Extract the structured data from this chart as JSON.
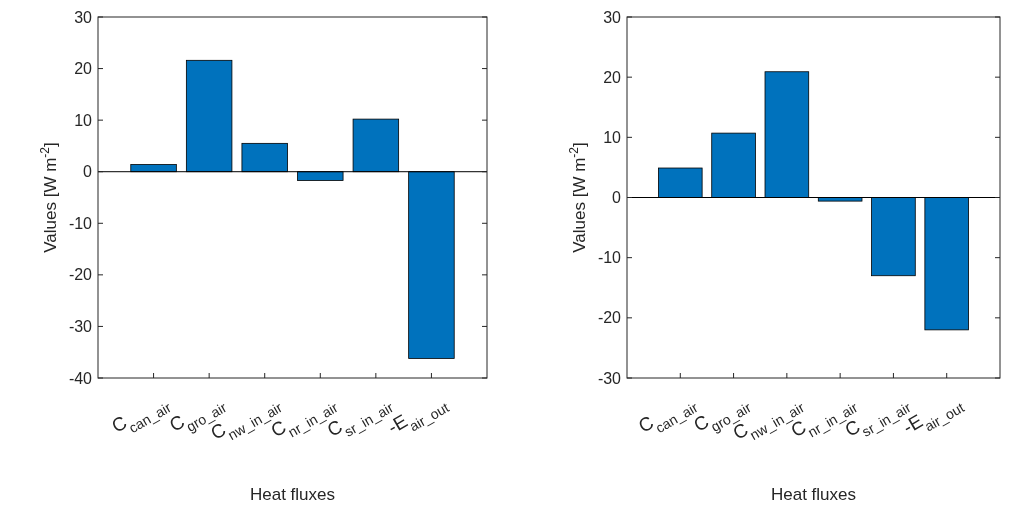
{
  "chart_data": [
    {
      "type": "bar",
      "xlabel": "Heat fluxes",
      "ylabel": "Values [W m$^{-2}$]",
      "categories": [
        "C$_{can_air}$",
        "C$_{gro_air}$",
        "C$_{nw_in_air}$",
        "C$_{nr_in_air}$",
        "C$_{sr_in_air}$",
        "-E$_{air_out}$"
      ],
      "values": [
        1.4,
        21.6,
        5.5,
        -1.7,
        10.2,
        -36.2
      ],
      "color": "#0072bd",
      "ylim": [
        -40,
        30
      ],
      "yticks": [
        -40,
        -30,
        -20,
        -10,
        0,
        10,
        20,
        30
      ],
      "ref_lines": [
        {
          "axis": "y",
          "value": 0,
          "color": "#000000"
        }
      ],
      "grid": false
    },
    {
      "type": "bar",
      "xlabel": "Heat fluxes",
      "ylabel": "Values [W m$^{-2}$]",
      "categories": [
        "C$_{can_air}$",
        "C$_{gro_air}$",
        "C$_{nw_in_air}$",
        "C$_{nr_in_air}$",
        "C$_{sr_in_air}$",
        "-E$_{air_out}$"
      ],
      "values": [
        4.9,
        10.7,
        20.9,
        -0.6,
        -13.0,
        -22.0
      ],
      "color": "#0072bd",
      "ylim": [
        -30,
        30
      ],
      "yticks": [
        -30,
        -20,
        -10,
        0,
        10,
        20,
        30
      ],
      "ref_lines": [
        {
          "axis": "y",
          "value": 0,
          "color": "#000000"
        }
      ],
      "grid": false
    }
  ]
}
